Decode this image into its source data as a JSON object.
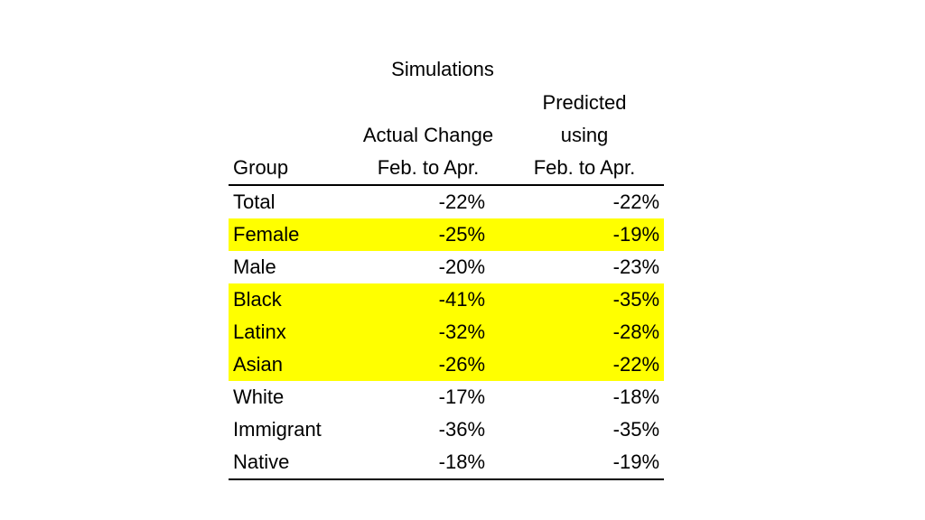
{
  "table": {
    "super_header": "Simulations",
    "headers": {
      "group": "Group",
      "actual_line1": "Actual Change",
      "actual_line2": "Feb. to Apr.",
      "pred_line1": "Predicted",
      "pred_line2": "using",
      "pred_line3": "Feb. to Apr."
    },
    "highlight_color": "#ffff00",
    "rows": [
      {
        "group": "Total",
        "actual": "-22%",
        "predicted": "-22%",
        "highlight": false
      },
      {
        "group": "Female",
        "actual": "-25%",
        "predicted": "-19%",
        "highlight": true
      },
      {
        "group": "Male",
        "actual": "-20%",
        "predicted": "-23%",
        "highlight": false
      },
      {
        "group": "Black",
        "actual": "-41%",
        "predicted": "-35%",
        "highlight": true
      },
      {
        "group": "Latinx",
        "actual": "-32%",
        "predicted": "-28%",
        "highlight": true
      },
      {
        "group": "Asian",
        "actual": "-26%",
        "predicted": "-22%",
        "highlight": true
      },
      {
        "group": "White",
        "actual": "-17%",
        "predicted": "-18%",
        "highlight": false
      },
      {
        "group": "Immigrant",
        "actual": "-36%",
        "predicted": "-35%",
        "highlight": false
      },
      {
        "group": "Native",
        "actual": "-18%",
        "predicted": "-19%",
        "highlight": false
      }
    ]
  }
}
